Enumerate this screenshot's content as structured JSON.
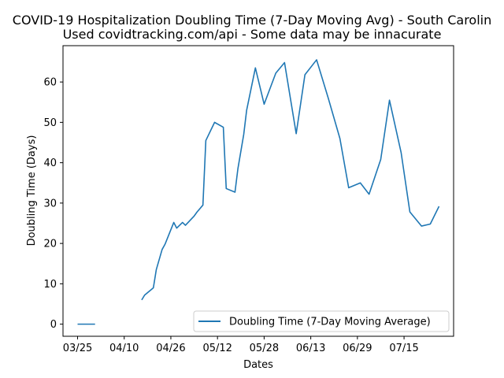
{
  "chart_data": {
    "type": "line",
    "title": "COVID-19 Hospitalization Doubling Time (7-Day Moving Avg) - South Carolin",
    "subtitle": "Used covidtracking.com/api - Some data may be innacurate",
    "xlabel": "Dates",
    "ylabel": "Doubling Time (Days)",
    "xlim": [
      "2020-03-20",
      "2020-08-01"
    ],
    "ylim": [
      -3,
      69
    ],
    "xticks": [
      {
        "date": "2020-03-25",
        "label": "03/25"
      },
      {
        "date": "2020-04-10",
        "label": "04/10"
      },
      {
        "date": "2020-04-26",
        "label": "04/26"
      },
      {
        "date": "2020-05-12",
        "label": "05/12"
      },
      {
        "date": "2020-05-28",
        "label": "05/28"
      },
      {
        "date": "2020-06-13",
        "label": "06/13"
      },
      {
        "date": "2020-06-29",
        "label": "06/29"
      },
      {
        "date": "2020-07-15",
        "label": "07/15"
      }
    ],
    "yticks": [
      0,
      10,
      20,
      30,
      40,
      50,
      60
    ],
    "legend": {
      "position": "lower-right"
    },
    "series": [
      {
        "name": "Doubling Time (7-Day Moving Average)",
        "color": "#1f77b4",
        "segments": [
          [
            {
              "x": "2020-03-25",
              "y": 0
            },
            {
              "x": "2020-03-31",
              "y": 0
            }
          ],
          [
            {
              "x": "2020-04-16",
              "y": 6
            },
            {
              "x": "2020-04-17",
              "y": 7.2
            },
            {
              "x": "2020-04-20",
              "y": 9
            },
            {
              "x": "2020-04-21",
              "y": 13.5
            },
            {
              "x": "2020-04-23",
              "y": 18.5
            },
            {
              "x": "2020-04-24",
              "y": 19.8
            },
            {
              "x": "2020-04-27",
              "y": 25.2
            },
            {
              "x": "2020-04-28",
              "y": 23.8
            },
            {
              "x": "2020-04-30",
              "y": 25.2
            },
            {
              "x": "2020-05-01",
              "y": 24.5
            },
            {
              "x": "2020-05-04",
              "y": 26.8
            },
            {
              "x": "2020-05-05",
              "y": 27.8
            },
            {
              "x": "2020-05-07",
              "y": 29.5
            },
            {
              "x": "2020-05-08",
              "y": 45.5
            },
            {
              "x": "2020-05-11",
              "y": 50
            },
            {
              "x": "2020-05-14",
              "y": 48.8
            },
            {
              "x": "2020-05-15",
              "y": 33.6
            },
            {
              "x": "2020-05-18",
              "y": 32.7
            },
            {
              "x": "2020-05-19",
              "y": 38.5
            },
            {
              "x": "2020-05-21",
              "y": 47
            },
            {
              "x": "2020-05-22",
              "y": 53
            },
            {
              "x": "2020-05-25",
              "y": 63.5
            },
            {
              "x": "2020-05-28",
              "y": 54.5
            },
            {
              "x": "2020-06-01",
              "y": 62.2
            },
            {
              "x": "2020-06-04",
              "y": 64.8
            },
            {
              "x": "2020-06-08",
              "y": 47.2
            },
            {
              "x": "2020-06-11",
              "y": 61.8
            },
            {
              "x": "2020-06-15",
              "y": 65.5
            },
            {
              "x": "2020-06-19",
              "y": 56
            },
            {
              "x": "2020-06-23",
              "y": 46
            },
            {
              "x": "2020-06-26",
              "y": 33.8
            },
            {
              "x": "2020-06-30",
              "y": 35
            },
            {
              "x": "2020-07-03",
              "y": 32.2
            },
            {
              "x": "2020-07-07",
              "y": 40.8
            },
            {
              "x": "2020-07-10",
              "y": 55.5
            },
            {
              "x": "2020-07-14",
              "y": 42.5
            },
            {
              "x": "2020-07-17",
              "y": 27.8
            },
            {
              "x": "2020-07-21",
              "y": 24.3
            },
            {
              "x": "2020-07-24",
              "y": 24.8
            },
            {
              "x": "2020-07-27",
              "y": 29.2
            }
          ]
        ]
      }
    ]
  }
}
